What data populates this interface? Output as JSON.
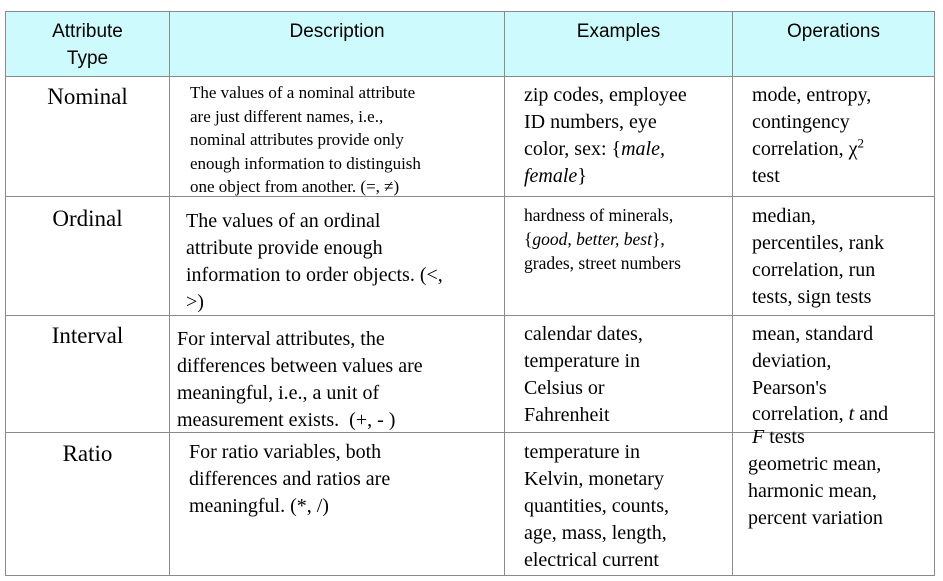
{
  "header": {
    "attribute_type_line1": "Attribute",
    "attribute_type_line2": "Type",
    "description": "Description",
    "examples": "Examples",
    "operations": "Operations"
  },
  "rows": [
    {
      "type": "Nominal",
      "description": [
        "The values of a nominal attribute",
        "are just different names, i.e.,",
        "nominal attributes provide only",
        "enough information to distinguish",
        "one object from another. (=, ≠)"
      ],
      "examples": [
        "zip codes, employee",
        "ID numbers, eye",
        "color, sex: {male,",
        "female}"
      ],
      "operations": [
        "mode, entropy,",
        "contingency",
        "correlation, χ",
        "test"
      ],
      "operations_sup": "2"
    },
    {
      "type": "Ordinal",
      "description": [
        "The values of an ordinal",
        "attribute provide enough",
        "information to order objects. (<,",
        ">)"
      ],
      "examples": [
        "hardness of minerals,",
        "{good, better, best},",
        "grades, street numbers"
      ],
      "operations": [
        "median,",
        "percentiles, rank",
        "correlation, run",
        "tests, sign tests"
      ]
    },
    {
      "type": "Interval",
      "description": [
        "For interval attributes, the",
        "differences between values are",
        "meaningful, i.e., a unit of",
        "measurement exists.  (+, - )"
      ],
      "examples": [
        "calendar dates,",
        "temperature in",
        "Celsius or",
        "Fahrenheit"
      ],
      "operations": [
        "mean, standard",
        "deviation,",
        "Pearson's",
        "correlation, t and",
        "F tests"
      ]
    },
    {
      "type": "Ratio",
      "description": [
        "For ratio variables, both",
        "differences and ratios are",
        "meaningful. (*, /)"
      ],
      "examples": [
        "temperature in",
        "Kelvin, monetary",
        "quantities, counts,",
        "age, mass, length,",
        "electrical current"
      ],
      "operations": [
        "geometric mean,",
        "harmonic mean,",
        "percent variation"
      ]
    }
  ]
}
